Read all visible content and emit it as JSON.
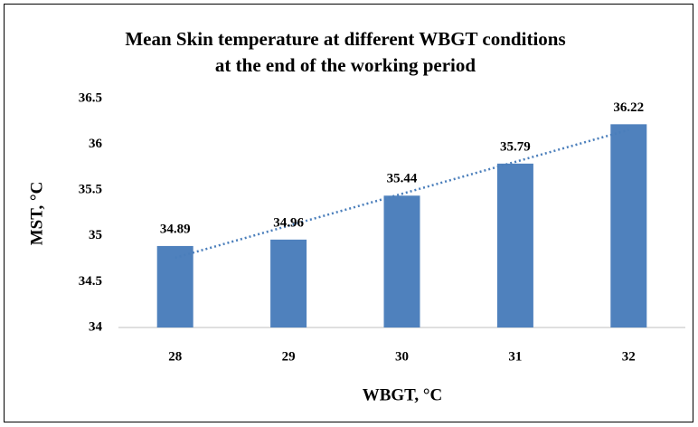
{
  "chart_data": {
    "type": "bar",
    "title": [
      "Mean Skin temperature at different WBGT conditions",
      "at the end of the working period"
    ],
    "categories": [
      "28",
      "29",
      "30",
      "31",
      "32"
    ],
    "values": [
      34.89,
      34.96,
      35.44,
      35.79,
      36.22
    ],
    "color": "#4f81bd",
    "trendline": "linear",
    "trendline_color": "#4a7ebb",
    "ylim": [
      34,
      36.5
    ],
    "yticks": [
      34,
      34.5,
      35,
      35.5,
      36,
      36.5
    ],
    "xlabel": "WBGT, °C",
    "ylabel": "MST, °C",
    "grid": false
  }
}
